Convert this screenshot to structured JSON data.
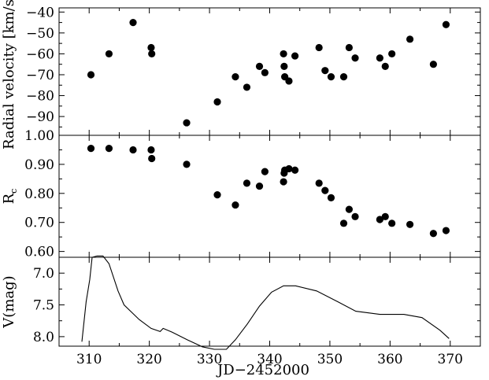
{
  "chart_data": {
    "type": "multi-panel scatter/line",
    "x_axis": {
      "label": "JD−2452000",
      "range": [
        305,
        375
      ],
      "ticks": [
        310,
        320,
        330,
        340,
        350,
        360,
        370
      ]
    },
    "panels": [
      {
        "id": "radial-velocity",
        "type": "scatter",
        "ylabel": "Radial velocity [km/s]",
        "ylim": [
          -99,
          -38
        ],
        "yticks": [
          -40,
          -50,
          -60,
          -70,
          -80,
          -90
        ],
        "ytick_labels": [
          "−40",
          "−50",
          "−60",
          "−70",
          "−80",
          "−90"
        ],
        "x": [
          310.3,
          313.3,
          317.3,
          320.3,
          320.4,
          326.2,
          331.3,
          334.3,
          336.2,
          338.3,
          339.2,
          342.3,
          342.4,
          342.5,
          343.2,
          344.2,
          348.2,
          349.2,
          350.2,
          352.3,
          353.2,
          354.2,
          358.3,
          359.2,
          360.3,
          363.3,
          367.2,
          369.3
        ],
        "values": [
          -70,
          -60,
          -45,
          -57,
          -60,
          -93,
          -83,
          -71,
          -76,
          -66,
          -69,
          -60,
          -66,
          -71,
          -73,
          -61,
          -57,
          -68,
          -71,
          -71,
          -57,
          -62,
          -62,
          -66,
          -60,
          -53,
          -65,
          -46
        ]
      },
      {
        "id": "rc",
        "type": "scatter",
        "ylabel": "R",
        "ylabel_sub": "c",
        "ylim": [
          0.58,
          1.0
        ],
        "yticks": [
          0.6,
          0.7,
          0.8,
          0.9,
          1.0
        ],
        "ytick_labels": [
          "0.60",
          "0.70",
          "0.80",
          "0.90",
          "1.00"
        ],
        "x": [
          310.3,
          313.3,
          317.3,
          320.3,
          320.4,
          326.2,
          331.3,
          334.3,
          336.2,
          338.3,
          339.2,
          342.3,
          342.4,
          342.5,
          343.2,
          344.2,
          348.2,
          349.2,
          350.2,
          352.3,
          353.2,
          354.2,
          358.3,
          359.2,
          360.3,
          363.3,
          367.2,
          369.3
        ],
        "values": [
          0.955,
          0.955,
          0.95,
          0.95,
          0.92,
          0.9,
          0.795,
          0.76,
          0.835,
          0.825,
          0.875,
          0.84,
          0.87,
          0.88,
          0.885,
          0.88,
          0.835,
          0.81,
          0.785,
          0.697,
          0.745,
          0.72,
          0.71,
          0.72,
          0.697,
          0.693,
          0.662,
          0.672
        ]
      },
      {
        "id": "v-mag",
        "type": "line",
        "ylabel": "V(mag)",
        "ylim": [
          8.15,
          6.75
        ],
        "yticks": [
          7.0,
          7.5,
          8.0
        ],
        "ytick_labels": [
          "7.0",
          "7.5",
          "8.0"
        ],
        "x": [
          308.8,
          309.5,
          310.1,
          310.5,
          311.3,
          312.3,
          313.3,
          314.8,
          315.8,
          318.3,
          320.3,
          321.8,
          322.3,
          323.8,
          326.3,
          328.8,
          330.8,
          332.8,
          334.3,
          336.3,
          338.3,
          340.3,
          342.3,
          344.3,
          347.8,
          351.3,
          354.3,
          358.3,
          362.3,
          365.3,
          368.3,
          369.8
        ],
        "values": [
          8.08,
          7.45,
          7.1,
          6.75,
          6.73,
          6.73,
          6.85,
          7.28,
          7.5,
          7.73,
          7.87,
          7.92,
          7.87,
          7.93,
          8.05,
          8.16,
          8.2,
          8.2,
          8.05,
          7.8,
          7.52,
          7.3,
          7.2,
          7.2,
          7.28,
          7.45,
          7.6,
          7.65,
          7.65,
          7.7,
          7.9,
          8.03
        ]
      }
    ]
  }
}
